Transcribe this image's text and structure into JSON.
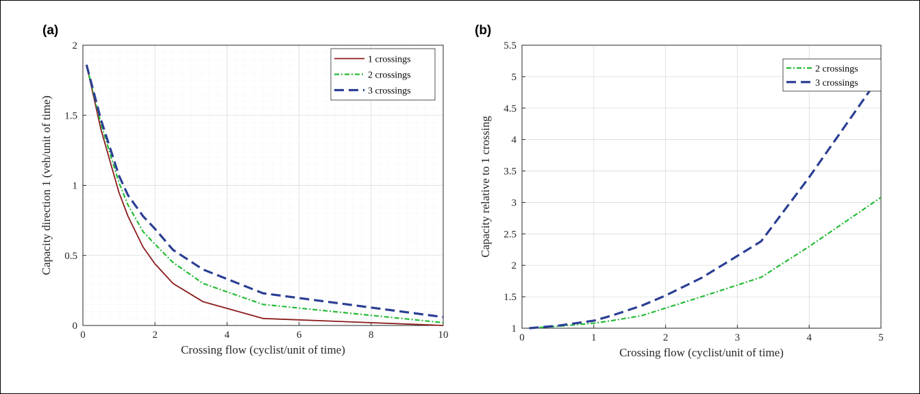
{
  "chart_data": [
    {
      "panel_label": "(a)",
      "type": "line",
      "xlabel": "Crossing flow (cyclist/unit of time)",
      "ylabel": "Capacity direction 1 (veh/unit of time)",
      "xlim": [
        0,
        10
      ],
      "ylim": [
        0,
        2
      ],
      "xticks": [
        0,
        2,
        4,
        6,
        8,
        10
      ],
      "yticks": [
        0,
        0.5,
        1,
        1.5,
        2
      ],
      "tick_labels_x": [
        "0",
        "2",
        "4",
        "6",
        "8",
        "10"
      ],
      "tick_labels_y": [
        "0",
        "0.5",
        "1",
        "1.5",
        "2"
      ],
      "grid": "major and minor",
      "legend_position": "top-right",
      "series": [
        {
          "name": "1 crossings",
          "color": "#8b1a1a",
          "style": "solid",
          "x": [
            0.1,
            0.5,
            1,
            1.25,
            1.67,
            2,
            2.5,
            3.33,
            5,
            10
          ],
          "y": [
            1.86,
            1.4,
            0.95,
            0.78,
            0.56,
            0.44,
            0.3,
            0.17,
            0.05,
            0.0
          ]
        },
        {
          "name": "2 crossings",
          "color": "#22bb33",
          "style": "dashdot",
          "x": [
            0.1,
            0.5,
            1,
            1.25,
            1.67,
            2,
            2.5,
            3.33,
            5,
            10
          ],
          "y": [
            1.86,
            1.44,
            1.02,
            0.86,
            0.67,
            0.58,
            0.45,
            0.3,
            0.15,
            0.02
          ]
        },
        {
          "name": "3 crossings",
          "color": "#2b3f94",
          "style": "dashed",
          "x": [
            0.1,
            0.5,
            1,
            1.25,
            1.67,
            2,
            2.5,
            3.33,
            5,
            10
          ],
          "y": [
            1.86,
            1.47,
            1.07,
            0.93,
            0.78,
            0.69,
            0.54,
            0.4,
            0.23,
            0.06
          ]
        }
      ]
    },
    {
      "panel_label": "(b)",
      "type": "line",
      "xlabel": "Crossing flow (cyclist/unit of time)",
      "ylabel": "Capacity relative to 1 crossing",
      "xlim": [
        0,
        5
      ],
      "ylim": [
        1,
        5.5
      ],
      "xticks": [
        0,
        1,
        2,
        3,
        4,
        5
      ],
      "yticks": [
        1,
        1.5,
        2,
        2.5,
        3,
        3.5,
        4,
        4.5,
        5,
        5.5
      ],
      "tick_labels_x": [
        "0",
        "1",
        "2",
        "3",
        "4",
        "5"
      ],
      "tick_labels_y": [
        "1",
        "1.5",
        "2",
        "2.5",
        "3",
        "3.5",
        "4",
        "4.5",
        "5",
        "5.5"
      ],
      "grid": "major",
      "legend_position": "top-right",
      "series": [
        {
          "name": "2 crossings",
          "color": "#22bb33",
          "style": "dashdot",
          "x": [
            0.1,
            0.5,
            1,
            1.25,
            1.67,
            2,
            2.5,
            3.33,
            4,
            5
          ],
          "y": [
            1.0,
            1.03,
            1.08,
            1.12,
            1.2,
            1.32,
            1.5,
            1.81,
            2.3,
            3.08
          ]
        },
        {
          "name": "3 crossings",
          "color": "#2b3f94",
          "style": "dashed",
          "x": [
            0.1,
            0.5,
            1,
            1.25,
            1.67,
            2,
            2.5,
            3.33,
            4,
            5
          ],
          "y": [
            1.0,
            1.04,
            1.12,
            1.2,
            1.36,
            1.52,
            1.8,
            2.38,
            3.4,
            5.03
          ]
        }
      ]
    }
  ]
}
